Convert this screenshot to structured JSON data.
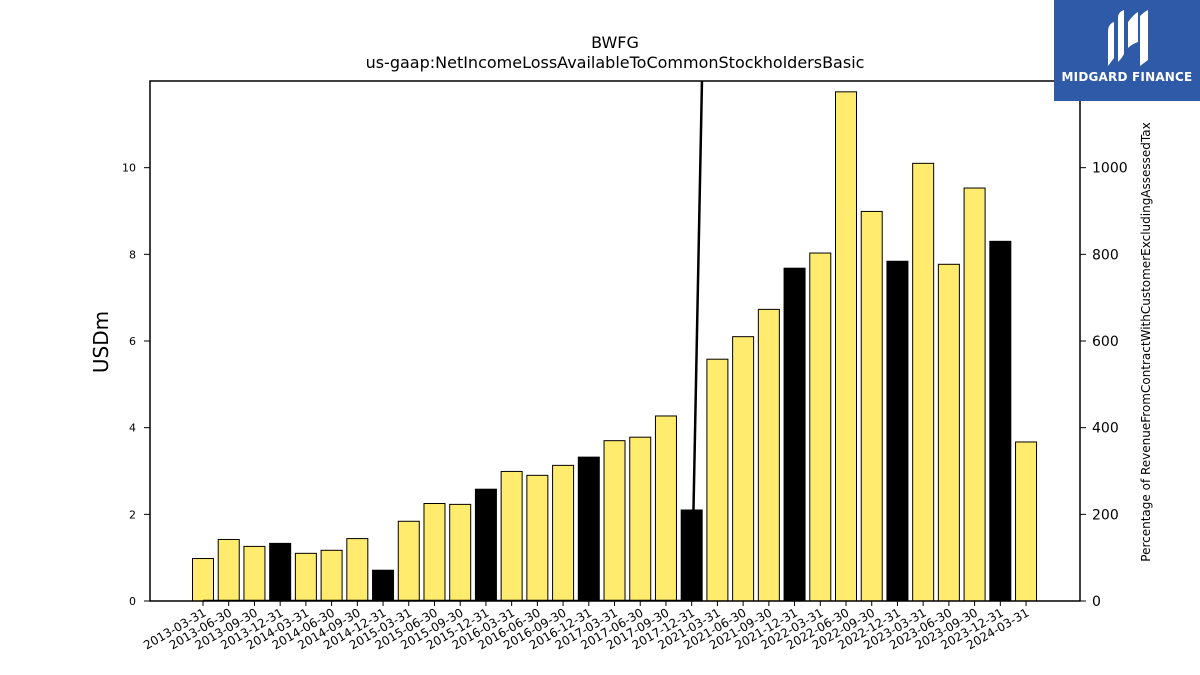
{
  "chart_data": {
    "type": "bar",
    "title": "BWFG",
    "subtitle": "us-gaap:NetIncomeLossAvailableToCommonStockholdersBasic",
    "ylabel": "USDm",
    "y2label": "Percentage of RevenueFromContractWithCustomerExcludingAssessedTax",
    "ylim": [
      0,
      12
    ],
    "y2lim": [
      0,
      1200
    ],
    "yticks": [
      0,
      2,
      4,
      6,
      8,
      10
    ],
    "y2ticks": [
      0,
      200,
      400,
      600,
      800,
      1000
    ],
    "grid": false,
    "categories": [
      "2013-03-31",
      "2013-06-30",
      "2013-09-30",
      "2013-12-31",
      "2014-03-31",
      "2014-06-30",
      "2014-09-30",
      "2014-12-31",
      "2015-03-31",
      "2015-06-30",
      "2015-09-30",
      "2015-12-31",
      "2016-03-31",
      "2016-06-30",
      "2016-09-30",
      "2016-12-31",
      "2017-03-31",
      "2017-06-30",
      "2017-09-30",
      "2017-12-31",
      "2021-03-31",
      "2021-06-30",
      "2021-09-30",
      "2021-12-31",
      "2022-03-31",
      "2022-06-30",
      "2022-09-30",
      "2022-12-31",
      "2023-03-31",
      "2023-06-30",
      "2023-09-30",
      "2023-12-31",
      "2024-03-31"
    ],
    "values": [
      0.98,
      1.42,
      1.26,
      1.33,
      1.1,
      1.17,
      1.44,
      0.71,
      1.84,
      2.25,
      2.23,
      2.58,
      2.99,
      2.9,
      3.13,
      3.32,
      3.7,
      3.78,
      4.27,
      2.1,
      5.58,
      6.1,
      6.73,
      7.68,
      8.03,
      11.75,
      8.99,
      7.84,
      10.1,
      7.77,
      9.53,
      8.3,
      3.67
    ],
    "bar_colors": [
      "#ffec6e",
      "#ffec6e",
      "#ffec6e",
      "#000000",
      "#ffec6e",
      "#ffec6e",
      "#ffec6e",
      "#000000",
      "#ffec6e",
      "#ffec6e",
      "#ffec6e",
      "#000000",
      "#ffec6e",
      "#ffec6e",
      "#ffec6e",
      "#000000",
      "#ffec6e",
      "#ffec6e",
      "#ffec6e",
      "#000000",
      "#ffec6e",
      "#ffec6e",
      "#ffec6e",
      "#000000",
      "#ffec6e",
      "#ffec6e",
      "#ffec6e",
      "#000000",
      "#ffec6e",
      "#ffec6e",
      "#ffec6e",
      "#000000",
      "#ffec6e"
    ],
    "secondary_line": {
      "axis": "right",
      "color": "#000000",
      "points": [
        [
          0,
          0
        ],
        [
          1,
          0
        ],
        [
          2,
          0
        ],
        [
          3,
          0
        ],
        [
          4,
          0
        ],
        [
          5,
          0
        ],
        [
          6,
          0
        ],
        [
          7,
          0
        ],
        [
          8,
          0
        ],
        [
          9,
          0
        ],
        [
          10,
          0
        ],
        [
          11,
          0
        ],
        [
          12,
          0
        ],
        [
          13,
          0
        ],
        [
          14,
          0
        ],
        [
          15,
          0
        ],
        [
          16,
          0
        ],
        [
          17,
          0
        ],
        [
          18,
          0
        ],
        [
          19,
          0
        ],
        [
          19.4,
          1200
        ]
      ]
    }
  },
  "logo": {
    "text": "MIDGARD FINANCE",
    "background": "#2f5aa8"
  }
}
